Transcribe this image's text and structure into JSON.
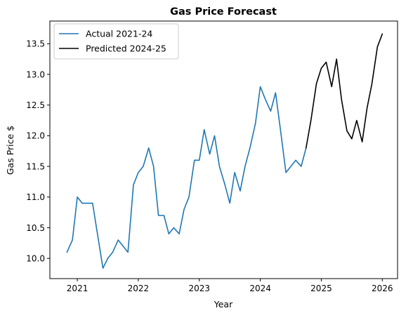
{
  "chart_data": {
    "type": "line",
    "title": "Gas Price Forecast",
    "xlabel": "Year",
    "ylabel": "Gas Price $",
    "xlim": [
      2020.55,
      2026.25
    ],
    "ylim": [
      9.67,
      13.87
    ],
    "x_ticks": [
      2021,
      2022,
      2023,
      2024,
      2025,
      2026
    ],
    "x_tick_labels": [
      "2021",
      "2022",
      "2023",
      "2024",
      "2025",
      "2026"
    ],
    "y_ticks": [
      10.0,
      10.5,
      11.0,
      11.5,
      12.0,
      12.5,
      13.0,
      13.5
    ],
    "y_tick_labels": [
      "10.0",
      "10.5",
      "11.0",
      "11.5",
      "12.0",
      "12.5",
      "13.0",
      "13.5"
    ],
    "grid": false,
    "legend_position": "upper-left",
    "series": [
      {
        "name": "Actual 2021-24",
        "color": "#1f77b4",
        "x": [
          2020.83,
          2020.92,
          2021.0,
          2021.08,
          2021.17,
          2021.25,
          2021.33,
          2021.42,
          2021.5,
          2021.58,
          2021.67,
          2021.75,
          2021.83,
          2021.92,
          2022.0,
          2022.08,
          2022.17,
          2022.25,
          2022.33,
          2022.42,
          2022.5,
          2022.58,
          2022.67,
          2022.75,
          2022.83,
          2022.92,
          2023.0,
          2023.08,
          2023.17,
          2023.25,
          2023.33,
          2023.42,
          2023.5,
          2023.58,
          2023.67,
          2023.75,
          2023.83,
          2023.92,
          2024.0,
          2024.08,
          2024.17,
          2024.25,
          2024.33,
          2024.42,
          2024.5,
          2024.58,
          2024.67,
          2024.75
        ],
        "y": [
          10.1,
          10.3,
          11.0,
          10.9,
          10.9,
          10.9,
          10.4,
          9.84,
          10.0,
          10.1,
          10.3,
          10.2,
          10.1,
          11.2,
          11.4,
          11.5,
          11.8,
          11.5,
          10.7,
          10.7,
          10.4,
          10.5,
          10.4,
          10.8,
          11.0,
          11.6,
          11.6,
          12.1,
          11.7,
          12.0,
          11.5,
          11.2,
          10.9,
          11.4,
          11.1,
          11.5,
          11.8,
          12.2,
          12.8,
          12.6,
          12.4,
          12.7,
          12.1,
          11.4,
          11.5,
          11.6,
          11.5,
          11.8
        ]
      },
      {
        "name": "Predicted 2024-25",
        "color": "#000000",
        "x": [
          2024.75,
          2024.83,
          2024.92,
          2025.0,
          2025.08,
          2025.17,
          2025.25,
          2025.33,
          2025.42,
          2025.5,
          2025.58,
          2025.67,
          2025.75,
          2025.83,
          2025.92,
          2026.0
        ],
        "y": [
          11.8,
          12.25,
          12.85,
          13.1,
          13.2,
          12.8,
          13.25,
          12.6,
          12.08,
          11.95,
          12.25,
          11.9,
          12.45,
          12.85,
          13.45,
          13.66
        ]
      }
    ]
  }
}
